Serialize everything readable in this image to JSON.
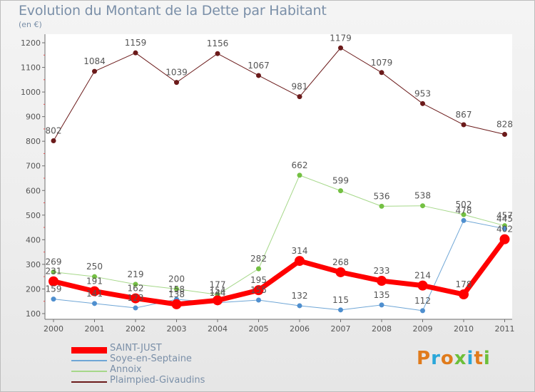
{
  "title": "Evolution du Montant de la Dette par Habitant",
  "subtitle": "(en €)",
  "logo": {
    "text": "Proxiti",
    "colors": [
      "#e07b1c",
      "#2aa7d9",
      "#e07b1c",
      "#6cbf3a",
      "#2aa7d9",
      "#e07b1c",
      "#6cbf3a"
    ]
  },
  "chart_data": {
    "type": "line",
    "title": "Evolution du Montant de la Dette par Habitant",
    "ylabel": "(en €)",
    "xlabel": "",
    "ylim": [
      100,
      1200
    ],
    "yticks": [
      100,
      200,
      300,
      400,
      500,
      600,
      700,
      800,
      900,
      1000,
      1100,
      1200
    ],
    "categories": [
      "2000",
      "2001",
      "2002",
      "2003",
      "2004",
      "2005",
      "2006",
      "2007",
      "2008",
      "2009",
      "2010",
      "2011"
    ],
    "grid": false,
    "legend": "bottom-left",
    "series": [
      {
        "name": "Plaimpied-Givaudins",
        "color": "#6b1a1a",
        "marker": "#6b1a1a",
        "width": 1,
        "values": [
          802,
          1084,
          1159,
          1039,
          1156,
          1067,
          981,
          1179,
          1079,
          953,
          867,
          828
        ]
      },
      {
        "name": "Annoix",
        "color": "#a6d88a",
        "marker": "#74c043",
        "width": 1,
        "values": [
          269,
          250,
          219,
          200,
          177,
          282,
          662,
          599,
          536,
          538,
          502,
          457
        ]
      },
      {
        "name": "Soye-en-Septaine",
        "color": "#6fa6d6",
        "marker": "#4f8fcf",
        "width": 1,
        "values": [
          159,
          141,
          123,
          158,
          144,
          155,
          132,
          115,
          135,
          112,
          478,
          445
        ]
      },
      {
        "name": "SAINT-JUST",
        "color": "#ff0000",
        "marker": "#ff0000",
        "width": 7,
        "values": [
          231,
          191,
          162,
          138,
          154,
          195,
          314,
          268,
          233,
          214,
          178,
          402
        ]
      }
    ],
    "labels": {
      "Plaimpied-Givaudins": [
        "802",
        "1084",
        "1159",
        "1039",
        "1156",
        "1067",
        "981",
        "1179",
        "1079",
        "953",
        "867",
        "828"
      ],
      "Annoix": [
        "269",
        "250",
        "219",
        "200",
        "177",
        "282",
        "662",
        "599",
        "536",
        "538",
        "502",
        "457"
      ],
      "Soye-en-Septaine": [
        "159",
        "141",
        "123",
        "158",
        "144",
        "155",
        "132",
        "115",
        "135",
        "112",
        "478",
        "445"
      ],
      "SAINT-JUST": [
        "231",
        "191",
        "162",
        "138",
        "154",
        "195",
        "314",
        "268",
        "233",
        "214",
        "178",
        "402"
      ]
    },
    "legend_order": [
      "SAINT-JUST",
      "Soye-en-Septaine",
      "Annoix",
      "Plaimpied-Givaudins"
    ]
  }
}
